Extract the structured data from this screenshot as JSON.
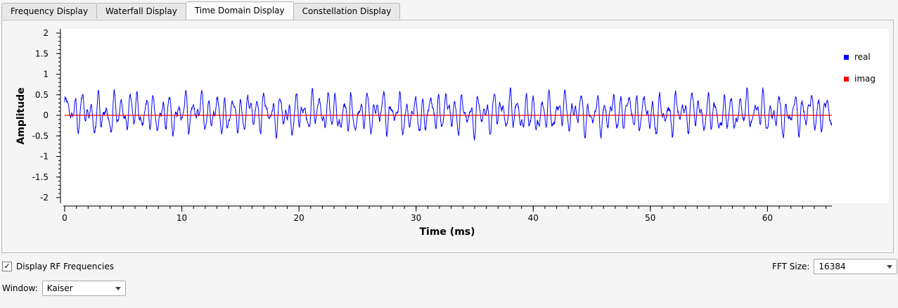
{
  "tabs": [
    {
      "label": "Frequency Display",
      "active": false
    },
    {
      "label": "Waterfall Display",
      "active": false
    },
    {
      "label": "Time Domain Display",
      "active": true
    },
    {
      "label": "Constellation Display",
      "active": false
    }
  ],
  "chart_data": {
    "type": "line",
    "xlabel": "Time (ms)",
    "ylabel": "Amplitude",
    "xlim": [
      0,
      65.5
    ],
    "ylim": [
      -2,
      2
    ],
    "x_ticks": [
      0,
      10,
      20,
      30,
      40,
      50,
      60
    ],
    "y_ticks": [
      "2",
      "1.5",
      "1",
      "0.5",
      "0",
      "-0.5",
      "-1",
      "-1.5",
      "-2"
    ],
    "legend_placement": "right",
    "grid": false,
    "series": [
      {
        "name": "real",
        "color": "#0000ff",
        "description": "noisy oscillation, approx 1.5 cycles per ms, amplitude mostly within -0.9 to 0.8"
      },
      {
        "name": "imag",
        "color": "#ff0000",
        "values_constant": 0
      }
    ]
  },
  "controls": {
    "display_rf_label": "Display RF Frequencies",
    "display_rf_checked": true,
    "check_glyph": "✓",
    "fft_label": "FFT Size:",
    "fft_value": "16384",
    "window_label": "Window:",
    "window_value": "Kaiser"
  }
}
